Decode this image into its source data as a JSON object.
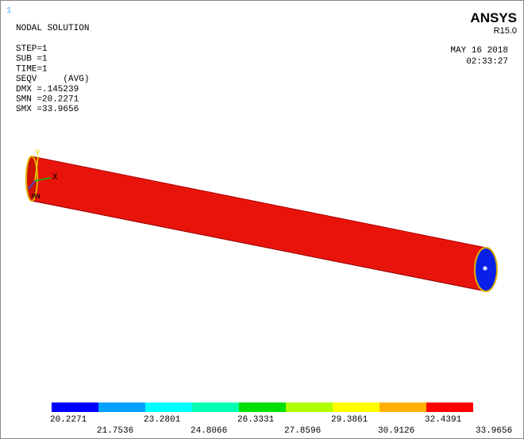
{
  "window_number": "1",
  "header": {
    "title": "NODAL SOLUTION",
    "lines": [
      "STEP=1",
      "SUB =1",
      "TIME=1",
      "SEQV     (AVG)",
      "DMX =.145239",
      "SMN =20.2271",
      "SMX =33.9656"
    ]
  },
  "brand": {
    "name": "ANSYS",
    "release": "R15.0",
    "date": "MAY 16 2018",
    "time": "02:33:27"
  },
  "triad": {
    "y": "Y",
    "x": "X",
    "min_label": "MN"
  },
  "legend": {
    "colors": [
      "#0000ff",
      "#00a0ff",
      "#00ffff",
      "#00ffb0",
      "#00e000",
      "#b0ff00",
      "#ffff00",
      "#ffb000",
      "#ff0000"
    ],
    "labels": [
      "20.2271",
      "21.7536",
      "23.2801",
      "24.8066",
      "26.3331",
      "27.8596",
      "29.3861",
      "30.9126",
      "32.4391",
      "33.9656"
    ]
  }
}
